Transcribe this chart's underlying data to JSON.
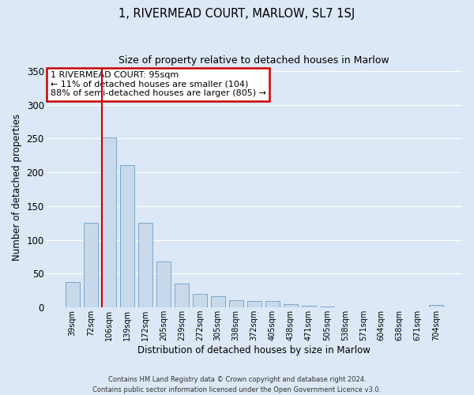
{
  "title": "1, RIVERMEAD COURT, MARLOW, SL7 1SJ",
  "subtitle": "Size of property relative to detached houses in Marlow",
  "xlabel": "Distribution of detached houses by size in Marlow",
  "ylabel": "Number of detached properties",
  "bar_labels": [
    "39sqm",
    "72sqm",
    "106sqm",
    "139sqm",
    "172sqm",
    "205sqm",
    "239sqm",
    "272sqm",
    "305sqm",
    "338sqm",
    "372sqm",
    "405sqm",
    "438sqm",
    "471sqm",
    "505sqm",
    "538sqm",
    "571sqm",
    "604sqm",
    "638sqm",
    "671sqm",
    "704sqm"
  ],
  "bar_values": [
    38,
    125,
    252,
    211,
    125,
    68,
    35,
    20,
    16,
    11,
    10,
    10,
    5,
    2,
    1,
    0,
    0,
    0,
    0,
    0,
    4
  ],
  "bar_color": "#c9d9ec",
  "bar_edge_color": "#7aa8cc",
  "ylim": [
    0,
    355
  ],
  "yticks": [
    0,
    50,
    100,
    150,
    200,
    250,
    300,
    350
  ],
  "property_line_index": 2,
  "property_line_color": "#cc0000",
  "annotation_title": "1 RIVERMEAD COURT: 95sqm",
  "annotation_line1": "← 11% of detached houses are smaller (104)",
  "annotation_line2": "88% of semi-detached houses are larger (805) →",
  "annotation_box_color": "#cc0000",
  "fig_bg_color": "#dce8f5",
  "plot_bg_color": "#dce8f5",
  "footer_line1": "Contains HM Land Registry data © Crown copyright and database right 2024.",
  "footer_line2": "Contains public sector information licensed under the Open Government Licence v3.0."
}
